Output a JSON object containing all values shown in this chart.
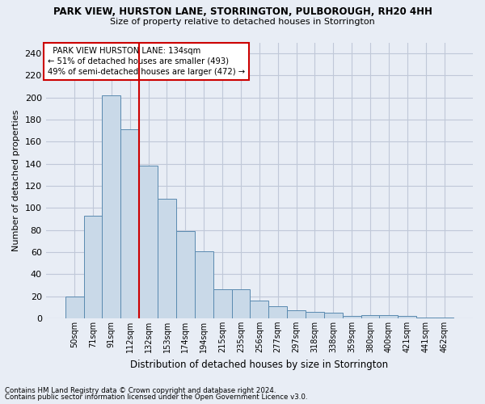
{
  "title1": "PARK VIEW, HURSTON LANE, STORRINGTON, PULBOROUGH, RH20 4HH",
  "title2": "Size of property relative to detached houses in Storrington",
  "xlabel": "Distribution of detached houses by size in Storrington",
  "ylabel": "Number of detached properties",
  "categories": [
    "50sqm",
    "71sqm",
    "91sqm",
    "112sqm",
    "132sqm",
    "153sqm",
    "174sqm",
    "194sqm",
    "215sqm",
    "235sqm",
    "256sqm",
    "277sqm",
    "297sqm",
    "318sqm",
    "338sqm",
    "359sqm",
    "380sqm",
    "400sqm",
    "421sqm",
    "441sqm",
    "462sqm"
  ],
  "values": [
    20,
    93,
    202,
    171,
    138,
    108,
    79,
    61,
    26,
    26,
    16,
    11,
    7,
    6,
    5,
    2,
    3,
    3,
    2,
    1,
    1
  ],
  "bar_color": "#c9d9e8",
  "bar_edge_color": "#5a8ab0",
  "vline_x_index": 4,
  "vline_color": "#cc0000",
  "annotation_text": "  PARK VIEW HURSTON LANE: 134sqm  \n← 51% of detached houses are smaller (493)\n49% of semi-detached houses are larger (472) →",
  "annotation_box_color": "#ffffff",
  "annotation_box_edge": "#cc0000",
  "ylim": [
    0,
    250
  ],
  "yticks": [
    0,
    20,
    40,
    60,
    80,
    100,
    120,
    140,
    160,
    180,
    200,
    220,
    240
  ],
  "grid_color": "#c0c8d8",
  "bg_color": "#e8edf5",
  "footnote1": "Contains HM Land Registry data © Crown copyright and database right 2024.",
  "footnote2": "Contains public sector information licensed under the Open Government Licence v3.0."
}
